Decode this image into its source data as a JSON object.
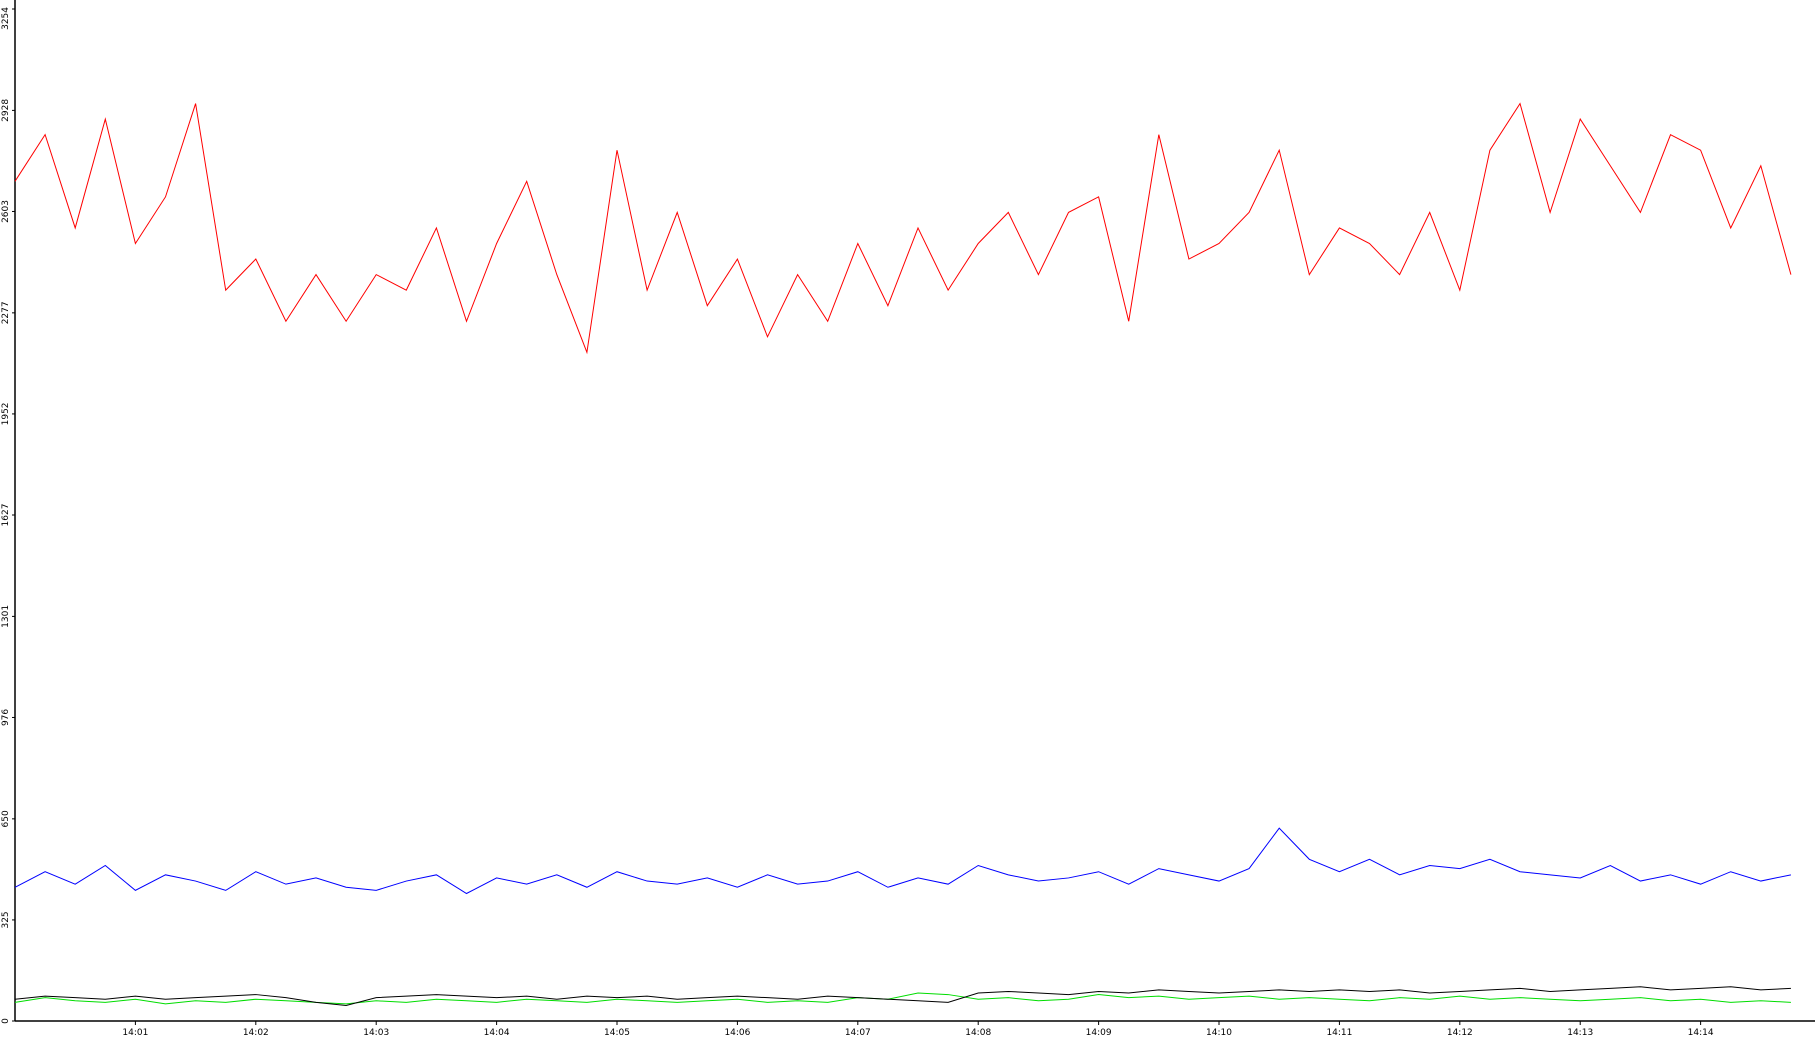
{
  "chart_data": {
    "type": "line",
    "x": [
      840,
      840.25,
      840.5,
      840.75,
      841,
      841.25,
      841.5,
      841.75,
      842,
      842.25,
      842.5,
      842.75,
      843,
      843.25,
      843.5,
      843.75,
      844,
      844.25,
      844.5,
      844.75,
      845,
      845.25,
      845.5,
      845.75,
      846,
      846.25,
      846.5,
      846.75,
      847,
      847.25,
      847.5,
      847.75,
      848,
      848.25,
      848.5,
      848.75,
      849,
      849.25,
      849.5,
      849.75,
      850,
      850.25,
      850.5,
      850.75,
      851,
      851.25,
      851.5,
      851.75,
      852,
      852.25,
      852.5,
      852.75,
      853,
      853.25,
      853.5,
      853.75,
      854,
      854.25,
      854.5,
      854.75
    ],
    "xlim": [
      840,
      854.95
    ],
    "xticks": [
      {
        "value": 841,
        "label": "14:01"
      },
      {
        "value": 842,
        "label": "14:02"
      },
      {
        "value": 843,
        "label": "14:03"
      },
      {
        "value": 844,
        "label": "14:04"
      },
      {
        "value": 845,
        "label": "14:05"
      },
      {
        "value": 846,
        "label": "14:06"
      },
      {
        "value": 847,
        "label": "14:07"
      },
      {
        "value": 848,
        "label": "14:08"
      },
      {
        "value": 849,
        "label": "14:09"
      },
      {
        "value": 850,
        "label": "14:10"
      },
      {
        "value": 851,
        "label": "14:11"
      },
      {
        "value": 852,
        "label": "14:12"
      },
      {
        "value": 853,
        "label": "14:13"
      },
      {
        "value": 854,
        "label": "14:14"
      }
    ],
    "ylim": [
      0,
      3254
    ],
    "yticks": [
      0,
      325,
      650,
      976,
      1301,
      1627,
      1952,
      2277,
      2603,
      2928,
      3254
    ],
    "series": [
      {
        "color": "#ff0000",
        "values": [
          2700,
          2850,
          2550,
          2900,
          2500,
          2650,
          2950,
          2350,
          2450,
          2250,
          2400,
          2250,
          2400,
          2350,
          2550,
          2250,
          2500,
          2700,
          2400,
          2150,
          2800,
          2350,
          2600,
          2300,
          2450,
          2200,
          2400,
          2250,
          2500,
          2300,
          2550,
          2350,
          2500,
          2600,
          2400,
          2600,
          2650,
          2250,
          2850,
          2450,
          2500,
          2600,
          2800,
          2400,
          2550,
          2500,
          2400,
          2600,
          2350,
          2800,
          2950,
          2600,
          2900,
          2750,
          2600,
          2850,
          2800,
          2550,
          2750,
          2400
        ]
      },
      {
        "color": "#0000ff",
        "values": [
          430,
          480,
          440,
          500,
          420,
          470,
          450,
          420,
          480,
          440,
          460,
          430,
          420,
          450,
          470,
          410,
          460,
          440,
          470,
          430,
          480,
          450,
          440,
          460,
          430,
          470,
          440,
          450,
          480,
          430,
          460,
          440,
          500,
          470,
          450,
          460,
          480,
          440,
          490,
          470,
          450,
          490,
          620,
          520,
          480,
          520,
          470,
          500,
          490,
          520,
          480,
          470,
          460,
          500,
          450,
          470,
          440,
          480,
          450,
          470
        ]
      },
      {
        "color": "#00dd00",
        "values": [
          60,
          75,
          65,
          60,
          70,
          55,
          65,
          60,
          70,
          65,
          60,
          55,
          65,
          60,
          70,
          65,
          60,
          70,
          65,
          60,
          70,
          65,
          60,
          65,
          70,
          60,
          65,
          60,
          75,
          70,
          90,
          85,
          70,
          75,
          65,
          70,
          85,
          75,
          80,
          70,
          75,
          80,
          70,
          75,
          70,
          65,
          75,
          70,
          80,
          70,
          75,
          70,
          65,
          70,
          75,
          65,
          70,
          60,
          65,
          60
        ]
      },
      {
        "color": "#000000",
        "values": [
          70,
          80,
          75,
          70,
          80,
          70,
          75,
          80,
          85,
          75,
          60,
          50,
          75,
          80,
          85,
          80,
          75,
          80,
          70,
          80,
          75,
          80,
          70,
          75,
          80,
          75,
          70,
          80,
          75,
          70,
          65,
          60,
          90,
          95,
          90,
          85,
          95,
          90,
          100,
          95,
          90,
          95,
          100,
          95,
          100,
          95,
          100,
          90,
          95,
          100,
          105,
          95,
          100,
          105,
          110,
          100,
          105,
          110,
          100,
          105
        ]
      }
    ]
  }
}
